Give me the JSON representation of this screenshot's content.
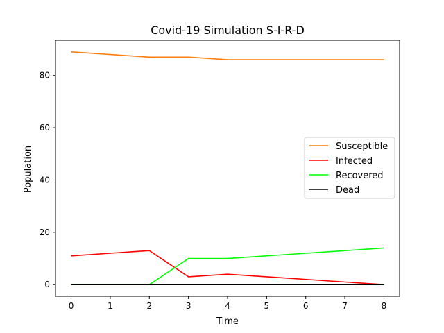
{
  "chart_data": {
    "type": "line",
    "title": "Covid-19 Simulation S-I-R-D",
    "xlabel": "Time",
    "ylabel": "Population",
    "xlim": [
      -0.4,
      8.4
    ],
    "ylim": [
      -4.45,
      93.45
    ],
    "xticks": [
      0,
      1,
      2,
      3,
      4,
      5,
      6,
      7,
      8
    ],
    "yticks": [
      0,
      20,
      40,
      60,
      80
    ],
    "grid": false,
    "legend_position": "center-right",
    "x": [
      0,
      2,
      3,
      4,
      8
    ],
    "series": [
      {
        "name": "Susceptible",
        "color": "#ff7f0e",
        "values": [
          89,
          87,
          87,
          86,
          86
        ]
      },
      {
        "name": "Infected",
        "color": "#ff0000",
        "values": [
          11,
          13,
          3,
          4,
          0
        ]
      },
      {
        "name": "Recovered",
        "color": "#00ff00",
        "values": [
          0,
          0,
          10,
          10,
          14
        ]
      },
      {
        "name": "Dead",
        "color": "#000000",
        "values": [
          0,
          0,
          0,
          0,
          0
        ]
      }
    ]
  }
}
